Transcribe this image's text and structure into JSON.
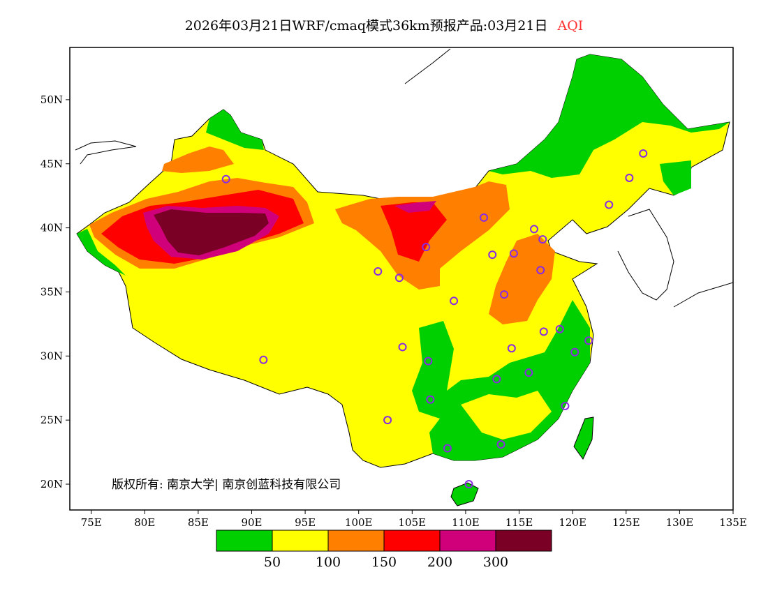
{
  "title": {
    "text": "2026年03月21日WRF/cmaq模式36km预报产品:03月21日",
    "variable": "AQI",
    "variable_color": "#ff3030"
  },
  "copyright": "版权所有: 南京大学| 南京创蓝科技有限公司",
  "chart_data": {
    "type": "map",
    "projection": "lat-lon",
    "lon_range": [
      73,
      135
    ],
    "lat_range": [
      18,
      54
    ],
    "x_ticks": [
      "75E",
      "80E",
      "85E",
      "90E",
      "95E",
      "100E",
      "105E",
      "110E",
      "115E",
      "120E",
      "125E",
      "130E",
      "135E"
    ],
    "y_ticks": [
      "20N",
      "25N",
      "30N",
      "35N",
      "40N",
      "45N",
      "50N"
    ],
    "legend": {
      "levels": [
        "50",
        "100",
        "150",
        "200",
        "300"
      ],
      "colors": [
        "#00d000",
        "#ffff00",
        "#ff8000",
        "#ff0000",
        "#d0007a",
        "#7a0026"
      ]
    },
    "stations": [
      [
        87.6,
        43.8
      ],
      [
        91.1,
        29.7
      ],
      [
        101.8,
        36.6
      ],
      [
        103.8,
        36.1
      ],
      [
        106.3,
        38.5
      ],
      [
        111.7,
        40.8
      ],
      [
        116.4,
        39.9
      ],
      [
        117.2,
        39.1
      ],
      [
        114.5,
        38.0
      ],
      [
        112.5,
        37.9
      ],
      [
        117.0,
        36.7
      ],
      [
        113.6,
        34.8
      ],
      [
        108.9,
        34.3
      ],
      [
        104.1,
        30.7
      ],
      [
        106.5,
        29.6
      ],
      [
        106.7,
        26.6
      ],
      [
        102.7,
        25.0
      ],
      [
        108.3,
        22.8
      ],
      [
        113.3,
        23.1
      ],
      [
        110.3,
        20.0
      ],
      [
        112.9,
        28.2
      ],
      [
        115.9,
        28.7
      ],
      [
        114.3,
        30.6
      ],
      [
        117.3,
        31.9
      ],
      [
        118.8,
        32.1
      ],
      [
        120.2,
        30.3
      ],
      [
        121.5,
        31.2
      ],
      [
        119.3,
        26.1
      ],
      [
        123.4,
        41.8
      ],
      [
        125.3,
        43.9
      ],
      [
        126.6,
        45.8
      ]
    ]
  }
}
